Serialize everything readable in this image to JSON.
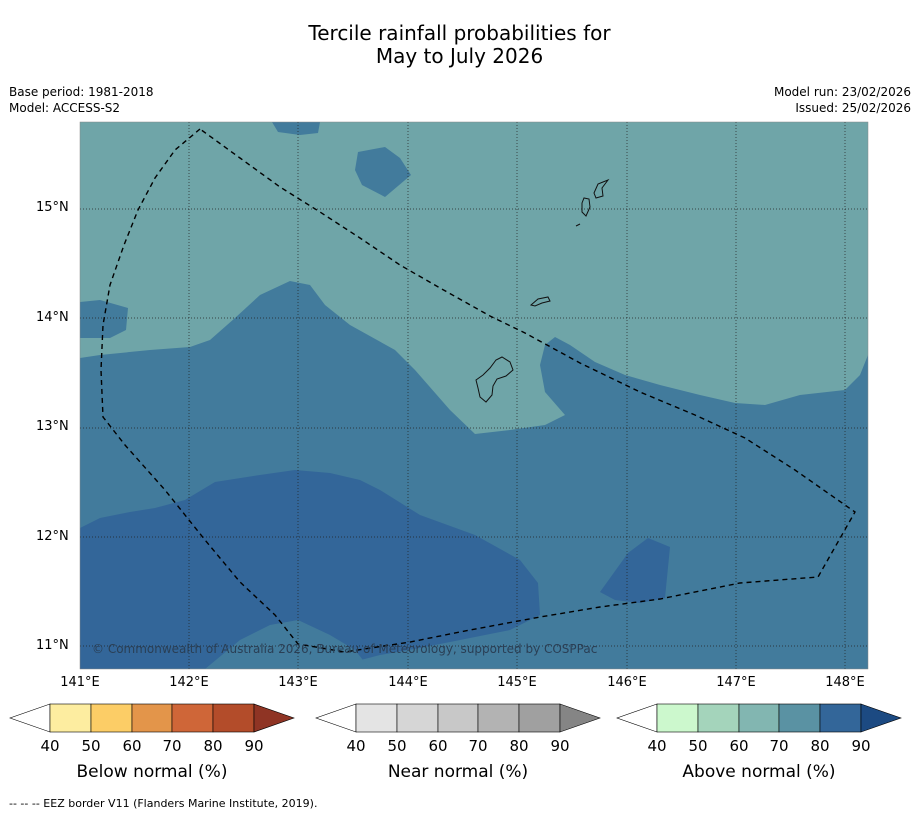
{
  "title_line1": "Tercile rainfall probabilities for",
  "title_line2": "May to July 2026",
  "meta": {
    "base_period": "Base period: 1981-2018",
    "model": "Model: ACCESS-S2",
    "model_run": "Model run: 23/02/2026",
    "issued": "Issued: 25/02/2026"
  },
  "map": {
    "lat_labels": [
      "15°N",
      "14°N",
      "13°N",
      "12°N",
      "11°N"
    ],
    "lon_labels": [
      "141°E",
      "142°E",
      "143°E",
      "144°E",
      "145°E",
      "146°E",
      "147°E",
      "148°E"
    ],
    "copyright": "© Commonwealth of Australia 2026, Bureau of Meteorology, supported by COSPPac",
    "colors": {
      "cat60_70": "#6fa5a8",
      "cat70_80": "#427b9c",
      "cat80_90": "#336699"
    }
  },
  "colorbars": [
    {
      "title": "Below normal (%)",
      "ticks": [
        "40",
        "50",
        "60",
        "70",
        "80",
        "90"
      ],
      "colors": [
        "#ffffff",
        "#fdeda0",
        "#fccd66",
        "#e3954a",
        "#cf6638",
        "#b34c2a",
        "#8f3424"
      ]
    },
    {
      "title": "Near normal (%)",
      "ticks": [
        "40",
        "50",
        "60",
        "70",
        "80",
        "90"
      ],
      "colors": [
        "#ffffff",
        "#e4e4e4",
        "#d6d6d6",
        "#c8c8c8",
        "#b3b3b3",
        "#a0a0a0",
        "#858585"
      ]
    },
    {
      "title": "Above normal (%)",
      "ticks": [
        "40",
        "50",
        "60",
        "70",
        "80",
        "90"
      ],
      "colors": [
        "#ffffff",
        "#ccf8cd",
        "#a4d4bb",
        "#82b6b1",
        "#5a92a3",
        "#336699",
        "#1c4a82"
      ]
    }
  ],
  "footer": "--  --  -- EEZ border V11 (Flanders Marine Institute, 2019)."
}
